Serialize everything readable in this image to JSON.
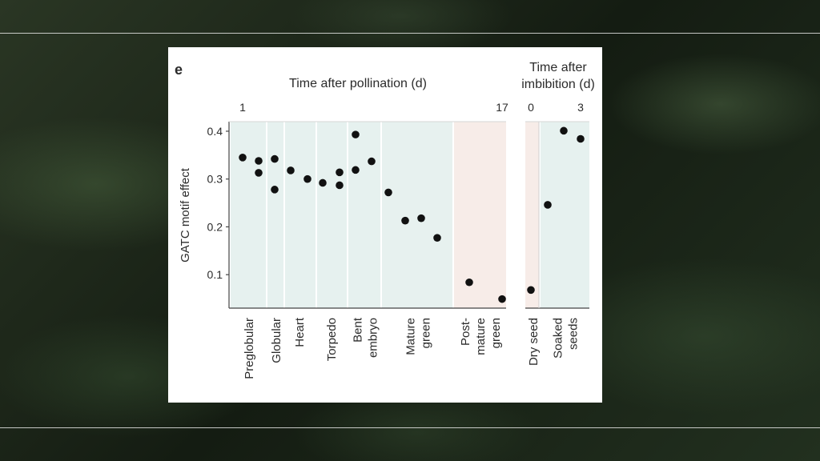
{
  "chart_data": {
    "type": "scatter",
    "panel_label": "e",
    "title_left": "Time after pollination (d)",
    "title_right": [
      "Time after",
      "imbibition (d)"
    ],
    "time_labels_left": [
      "1",
      "17"
    ],
    "time_labels_right": [
      "0",
      "3"
    ],
    "ylabel": "GATC motif effect",
    "ylim": [
      0.03,
      0.42
    ],
    "yticks": [
      0.1,
      0.2,
      0.3,
      0.4
    ],
    "ytick_labels": [
      "0.1",
      "0.2",
      "0.3",
      "0.4"
    ],
    "stages": [
      {
        "name": "Preglobular",
        "lines": [
          "Preglobular"
        ],
        "values": [
          0.345,
          0.338,
          0.313
        ],
        "band": "embryo"
      },
      {
        "name": "Globular",
        "lines": [
          "Globular"
        ],
        "values": [
          0.342,
          0.278
        ],
        "band": "embryo"
      },
      {
        "name": "Heart",
        "lines": [
          "Heart"
        ],
        "values": [
          0.318,
          0.3
        ],
        "band": "embryo"
      },
      {
        "name": "Torpedo",
        "lines": [
          "Torpedo"
        ],
        "values": [
          0.292,
          0.314,
          0.287
        ],
        "band": "embryo"
      },
      {
        "name": "Bent embryo",
        "lines": [
          "Bent",
          "embryo"
        ],
        "values": [
          0.393,
          0.319,
          0.337
        ],
        "band": "embryo"
      },
      {
        "name": "Mature green",
        "lines": [
          "Mature",
          "green"
        ],
        "values": [
          0.272,
          0.213,
          0.218,
          0.177
        ],
        "band": "mature"
      },
      {
        "name": "Post-mature green",
        "lines": [
          "Post-",
          "mature",
          "green"
        ],
        "values": [
          0.084,
          0.049
        ],
        "band": "postmature"
      },
      {
        "name": "Dry seed",
        "lines": [
          "Dry seed"
        ],
        "values": [
          0.068
        ],
        "band": "dry"
      },
      {
        "name": "Soaked seeds",
        "lines": [
          "Soaked",
          "seeds"
        ],
        "values": [
          0.246,
          0.401,
          0.384
        ],
        "band": "soaked"
      }
    ],
    "colors": {
      "embryo_band": "#e6f1ef",
      "mature_band": "#e7f1ef",
      "postmature_band": "#f7ece8",
      "dry_band": "#f7ece8",
      "soaked_band": "#e6f1ef",
      "dot": "#111111",
      "axis": "#444444"
    },
    "grid": false
  }
}
